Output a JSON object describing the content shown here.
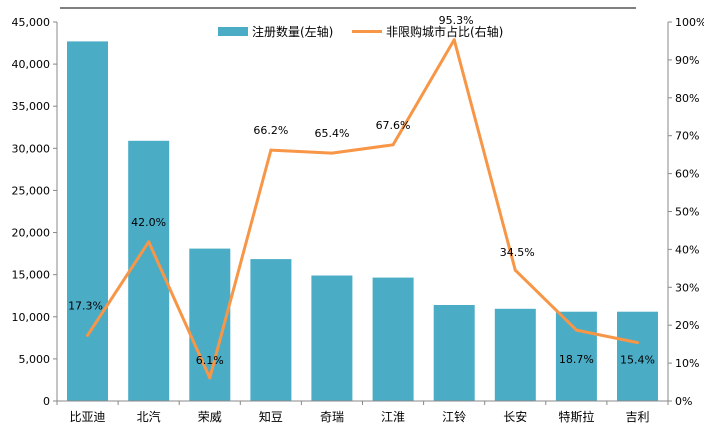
{
  "chart_data": {
    "type": "bar+line",
    "categories": [
      "比亚迪",
      "北汽",
      "荣威",
      "知豆",
      "奇瑞",
      "江淮",
      "江铃",
      "长安",
      "特斯拉",
      "吉利"
    ],
    "series": [
      {
        "name": "注册数量(左轴)",
        "type": "bar",
        "axis": "left",
        "color": "#4BACC6",
        "values": [
          42700,
          30900,
          18100,
          16850,
          14900,
          14650,
          11400,
          10950,
          10600,
          10600
        ]
      },
      {
        "name": "非限购城市占比(右轴)",
        "type": "line",
        "axis": "right",
        "color": "#F79646",
        "values": [
          17.3,
          42.0,
          6.1,
          66.2,
          65.4,
          67.6,
          95.3,
          34.5,
          18.7,
          15.4
        ],
        "labels": [
          "17.3%",
          "42.0%",
          "6.1%",
          "66.2%",
          "65.4%",
          "67.6%",
          "95.3%",
          "34.5%",
          "18.7%",
          "15.4%"
        ]
      }
    ],
    "left_axis": {
      "range": [
        0,
        45000
      ],
      "ticks": [
        0,
        5000,
        10000,
        15000,
        20000,
        25000,
        30000,
        35000,
        40000,
        45000
      ],
      "tick_labels": [
        "0",
        "5,000",
        "10,000",
        "15,000",
        "20,000",
        "25,000",
        "30,000",
        "35,000",
        "40,000",
        "45,000"
      ]
    },
    "right_axis": {
      "range": [
        0,
        100
      ],
      "ticks": [
        0,
        10,
        20,
        30,
        40,
        50,
        60,
        70,
        80,
        90,
        100
      ],
      "tick_labels": [
        "0%",
        "10%",
        "20%",
        "30%",
        "40%",
        "50%",
        "60%",
        "70%",
        "80%",
        "90%",
        "100%"
      ]
    },
    "grid": false,
    "legend": {
      "position": "top-center",
      "entries": [
        "注册数量(左轴)",
        "非限购城市占比(右轴)"
      ]
    }
  }
}
